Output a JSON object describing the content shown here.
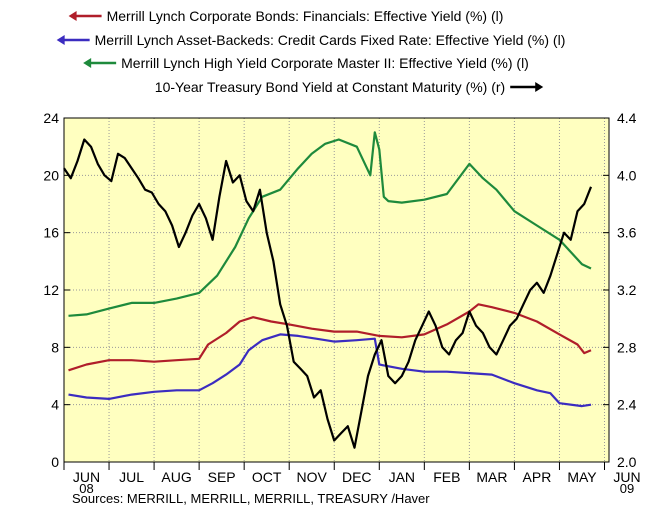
{
  "chart_data": {
    "type": "line",
    "title": "",
    "legend": {
      "placement": "top",
      "entries": [
        {
          "label": "Merrill Lynch Corporate Bonds: Financials: Effective Yield (%) (l)",
          "color": "#b01e2a",
          "arrow": "left"
        },
        {
          "label": "Merrill Lynch Asset-Backeds: Credit Cards Fixed Rate: Effective Yield (%) (l)",
          "color": "#3b2cc0",
          "arrow": "left"
        },
        {
          "label": "Merrill Lynch High Yield Corporate Master II: Effective Yield (%) (l)",
          "color": "#1e8a3c",
          "arrow": "left"
        },
        {
          "label": "10-Year Treasury Bond Yield at Constant Maturity (%) (r)",
          "color": "#000000",
          "arrow": "right"
        }
      ]
    },
    "x_axis": {
      "range": [
        0,
        12.1
      ],
      "months": [
        "JUN",
        "JUL",
        "AUG",
        "SEP",
        "OCT",
        "NOV",
        "DEC",
        "JAN",
        "FEB",
        "MAR",
        "APR",
        "MAY",
        "JUN"
      ],
      "year_labels": [
        {
          "label": "08",
          "at": 0.5
        },
        {
          "label": "09",
          "at": 12.5
        }
      ]
    },
    "y_left": {
      "range": [
        0,
        24
      ],
      "ticks": [
        0,
        4,
        8,
        12,
        16,
        20,
        24
      ]
    },
    "y_right": {
      "range": [
        2.0,
        4.4
      ],
      "ticks": [
        "2.0",
        "2.4",
        "2.8",
        "3.2",
        "3.6",
        "4.0",
        "4.4"
      ]
    },
    "grid": true,
    "series": [
      {
        "name": "Merrill Lynch Corporate Bonds: Financials: Effective Yield (%) (l)",
        "axis": "left",
        "color": "#b01e2a",
        "x": [
          0.1,
          0.5,
          1.0,
          1.5,
          2.0,
          2.5,
          3.0,
          3.2,
          3.6,
          3.9,
          4.2,
          4.6,
          5.0,
          5.5,
          6.0,
          6.5,
          7.0,
          7.5,
          8.0,
          8.5,
          9.0,
          9.2,
          9.5,
          10.0,
          10.5,
          11.0,
          11.4,
          11.55,
          11.7
        ],
        "y": [
          6.4,
          6.8,
          7.1,
          7.1,
          7.0,
          7.1,
          7.2,
          8.2,
          9.0,
          9.8,
          10.1,
          9.8,
          9.6,
          9.3,
          9.1,
          9.1,
          8.8,
          8.7,
          8.9,
          9.6,
          10.5,
          11.0,
          10.8,
          10.4,
          9.8,
          8.9,
          8.2,
          7.6,
          7.8
        ]
      },
      {
        "name": "Merrill Lynch Asset-Backeds: Credit Cards Fixed Rate: Effective Yield (%) (l)",
        "axis": "left",
        "color": "#3b2cc0",
        "x": [
          0.1,
          0.5,
          1.0,
          1.5,
          2.0,
          2.5,
          3.0,
          3.3,
          3.6,
          3.9,
          4.1,
          4.4,
          4.8,
          5.2,
          5.6,
          6.0,
          6.5,
          6.9,
          7.0,
          7.5,
          8.0,
          8.5,
          9.0,
          9.5,
          10.0,
          10.5,
          10.8,
          11.0,
          11.5,
          11.7
        ],
        "y": [
          4.7,
          4.5,
          4.4,
          4.7,
          4.9,
          5.0,
          5.0,
          5.5,
          6.1,
          6.8,
          7.8,
          8.5,
          8.9,
          8.8,
          8.6,
          8.4,
          8.5,
          8.6,
          6.8,
          6.5,
          6.3,
          6.3,
          6.2,
          6.1,
          5.5,
          5.0,
          4.8,
          4.1,
          3.9,
          4.0
        ]
      },
      {
        "name": "Merrill Lynch High Yield Corporate Master II: Effective Yield (%) (l)",
        "axis": "left",
        "color": "#1e8a3c",
        "x": [
          0.1,
          0.5,
          1.0,
          1.5,
          2.0,
          2.5,
          3.0,
          3.4,
          3.8,
          4.1,
          4.4,
          4.8,
          5.2,
          5.5,
          5.8,
          6.1,
          6.5,
          6.8,
          6.9,
          7.0,
          7.1,
          7.2,
          7.5,
          8.0,
          8.5,
          9.0,
          9.3,
          9.6,
          10.0,
          10.5,
          11.0,
          11.5,
          11.7
        ],
        "y": [
          10.2,
          10.3,
          10.7,
          11.1,
          11.1,
          11.4,
          11.8,
          13.0,
          15.0,
          17.0,
          18.5,
          19.0,
          20.5,
          21.5,
          22.2,
          22.5,
          22.0,
          20.0,
          23.0,
          21.8,
          18.5,
          18.2,
          18.1,
          18.3,
          18.7,
          20.8,
          19.8,
          19.0,
          17.5,
          16.5,
          15.5,
          13.8,
          13.5
        ]
      },
      {
        "name": "10-Year Treasury Bond Yield at Constant Maturity (%) (r)",
        "axis": "right",
        "color": "#000000",
        "x": [
          0.0,
          0.15,
          0.3,
          0.45,
          0.6,
          0.75,
          0.9,
          1.05,
          1.2,
          1.35,
          1.5,
          1.65,
          1.8,
          1.95,
          2.1,
          2.25,
          2.4,
          2.55,
          2.7,
          2.85,
          3.0,
          3.15,
          3.3,
          3.45,
          3.6,
          3.75,
          3.9,
          4.05,
          4.2,
          4.35,
          4.5,
          4.65,
          4.8,
          4.95,
          5.1,
          5.25,
          5.4,
          5.55,
          5.7,
          5.85,
          6.0,
          6.15,
          6.3,
          6.45,
          6.6,
          6.75,
          6.9,
          7.05,
          7.2,
          7.35,
          7.5,
          7.65,
          7.8,
          7.95,
          8.1,
          8.25,
          8.4,
          8.55,
          8.7,
          8.85,
          9.0,
          9.15,
          9.3,
          9.45,
          9.6,
          9.75,
          9.9,
          10.05,
          10.2,
          10.35,
          10.5,
          10.65,
          10.8,
          10.95,
          11.1,
          11.25,
          11.4,
          11.55,
          11.7
        ],
        "y": [
          4.05,
          3.98,
          4.1,
          4.25,
          4.2,
          4.08,
          4.0,
          3.96,
          4.15,
          4.12,
          4.05,
          3.98,
          3.9,
          3.88,
          3.8,
          3.75,
          3.65,
          3.5,
          3.6,
          3.72,
          3.8,
          3.7,
          3.55,
          3.85,
          4.1,
          3.95,
          4.0,
          3.82,
          3.75,
          3.9,
          3.6,
          3.4,
          3.1,
          2.95,
          2.7,
          2.65,
          2.6,
          2.45,
          2.5,
          2.3,
          2.15,
          2.2,
          2.25,
          2.1,
          2.35,
          2.6,
          2.75,
          2.85,
          2.6,
          2.55,
          2.6,
          2.7,
          2.85,
          2.95,
          3.05,
          2.95,
          2.8,
          2.75,
          2.85,
          2.9,
          3.05,
          2.95,
          2.9,
          2.8,
          2.75,
          2.85,
          2.95,
          3.0,
          3.1,
          3.2,
          3.25,
          3.18,
          3.3,
          3.45,
          3.6,
          3.55,
          3.75,
          3.8,
          3.92
        ]
      }
    ],
    "source_note": "Sources:  MERRILL, MERRILL, MERRILL, TREASURY /Haver"
  }
}
